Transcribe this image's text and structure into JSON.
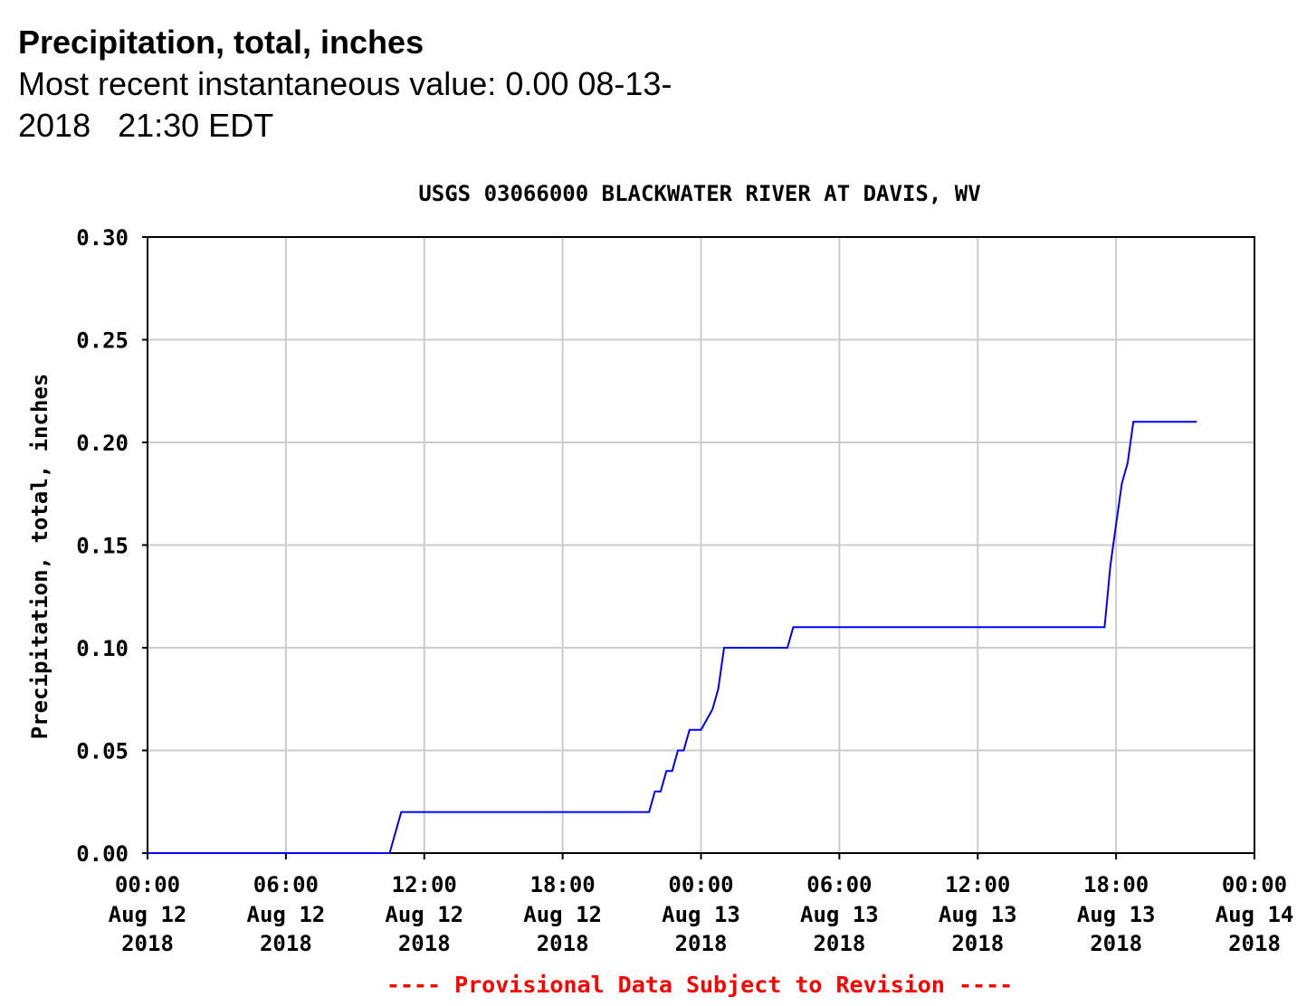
{
  "page": {
    "title": "Precipitation, total, inches",
    "recent_value_line1": "Most recent instantaneous value: 0.00 08-13-",
    "recent_value_line2": "2018   21:30 EDT"
  },
  "chart_data": {
    "type": "line",
    "title": "USGS 03066000 BLACKWATER RIVER AT DAVIS, WV",
    "xlabel": "",
    "ylabel": "Precipitation, total, inches",
    "footnote": "---- Provisional Data Subject to Revision ----",
    "ylim": [
      0,
      0.3
    ],
    "xlim_hours": [
      0,
      48
    ],
    "y_ticks": [
      "0.00",
      "0.05",
      "0.10",
      "0.15",
      "0.20",
      "0.25",
      "0.30"
    ],
    "x_ticks": [
      {
        "time": "00:00",
        "date": "Aug 12",
        "year": "2018"
      },
      {
        "time": "06:00",
        "date": "Aug 12",
        "year": "2018"
      },
      {
        "time": "12:00",
        "date": "Aug 12",
        "year": "2018"
      },
      {
        "time": "18:00",
        "date": "Aug 12",
        "year": "2018"
      },
      {
        "time": "00:00",
        "date": "Aug 13",
        "year": "2018"
      },
      {
        "time": "06:00",
        "date": "Aug 13",
        "year": "2018"
      },
      {
        "time": "12:00",
        "date": "Aug 13",
        "year": "2018"
      },
      {
        "time": "18:00",
        "date": "Aug 13",
        "year": "2018"
      },
      {
        "time": "00:00",
        "date": "Aug 14",
        "year": "2018"
      }
    ],
    "grid": true,
    "line_color": "#0000ff",
    "footnote_color": "#ff0000",
    "series": [
      {
        "x": [
          "2018-08-12 00:00",
          "2018-08-12 10:30",
          "2018-08-12 10:45",
          "2018-08-12 11:00",
          "2018-08-12 21:45",
          "2018-08-12 22:00",
          "2018-08-12 22:15",
          "2018-08-12 22:30",
          "2018-08-12 22:45",
          "2018-08-12 23:00",
          "2018-08-12 23:15",
          "2018-08-12 23:30",
          "2018-08-12 23:45",
          "2018-08-13 00:00",
          "2018-08-13 00:30",
          "2018-08-13 00:45",
          "2018-08-13 01:00",
          "2018-08-13 03:45",
          "2018-08-13 04:00",
          "2018-08-13 17:30",
          "2018-08-13 17:45",
          "2018-08-13 18:00",
          "2018-08-13 18:15",
          "2018-08-13 18:30",
          "2018-08-13 18:45",
          "2018-08-13 21:30"
        ],
        "y": [
          0.0,
          0.0,
          0.01,
          0.02,
          0.02,
          0.03,
          0.03,
          0.04,
          0.04,
          0.05,
          0.05,
          0.06,
          0.06,
          0.06,
          0.07,
          0.08,
          0.1,
          0.1,
          0.11,
          0.11,
          0.14,
          0.16,
          0.18,
          0.19,
          0.21,
          0.21
        ]
      }
    ]
  }
}
